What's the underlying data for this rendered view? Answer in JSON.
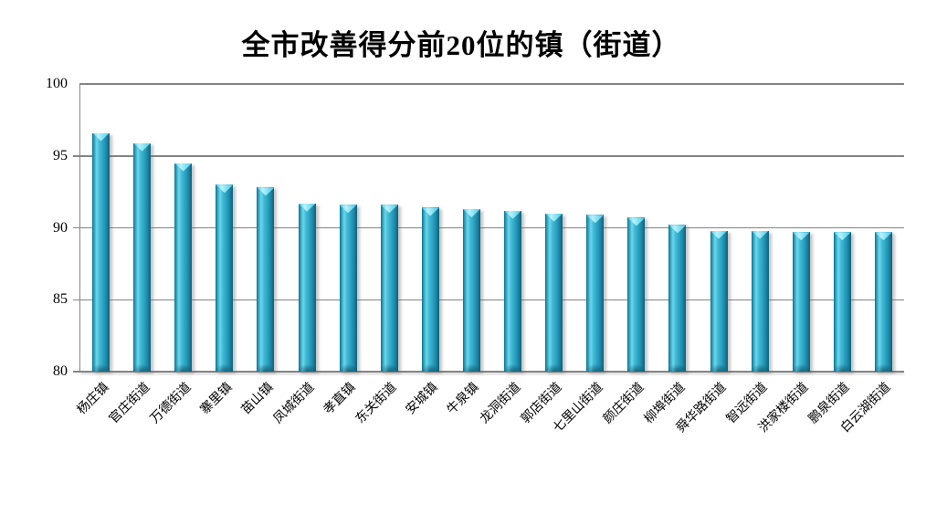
{
  "chart_data": {
    "type": "bar",
    "title": "全市改善得分前20位的镇（街道）",
    "categories": [
      "杨庄镇",
      "官庄街道",
      "万德街道",
      "寨里镇",
      "苗山镇",
      "凤城街道",
      "孝直镇",
      "东关街道",
      "安城镇",
      "牛泉镇",
      "龙洞街道",
      "郭店街道",
      "七里山街道",
      "颜庄街道",
      "柳埠街道",
      "舜华路街道",
      "智远街道",
      "洪家楼街道",
      "鹏泉街道",
      "白云湖街道"
    ],
    "values": [
      96.6,
      95.9,
      94.5,
      93.0,
      92.8,
      91.7,
      91.6,
      91.6,
      91.4,
      91.3,
      91.2,
      91.0,
      90.9,
      90.7,
      90.2,
      89.8,
      89.8,
      89.7,
      89.7,
      89.7
    ],
    "xlabel": "",
    "ylabel": "",
    "ylim": [
      80,
      100
    ],
    "yticks": [
      100,
      95,
      90,
      85,
      80
    ],
    "grid": true,
    "legend": false,
    "colors": {
      "bar_main": "#2FA9C8",
      "bar_highlight": "#B9F1FC",
      "bar_edge_dark": "#0E617C",
      "axis_gray": "#848484",
      "text": "#000000",
      "background": "#FFFFFF"
    }
  }
}
